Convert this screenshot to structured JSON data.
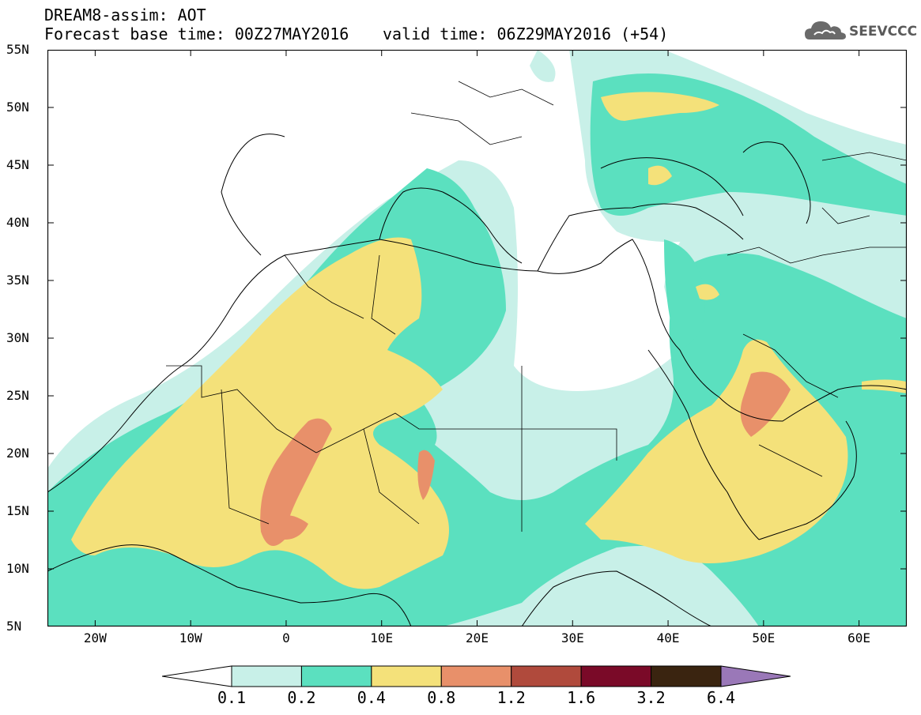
{
  "header": {
    "title_line1": "DREAM8-assim: AOT",
    "title_line2": "Forecast base time: 00Z27MAY2016",
    "valid_time": "valid time: 06Z29MAY2016 (+54)"
  },
  "logo": {
    "text": "SEEVCCC",
    "icon": "cloud-icon"
  },
  "map": {
    "lat_labels": [
      "55N",
      "50N",
      "45N",
      "40N",
      "35N",
      "30N",
      "25N",
      "20N",
      "15N",
      "10N",
      "5N"
    ],
    "lon_labels": [
      "20W",
      "10W",
      "0",
      "10E",
      "20E",
      "30E",
      "40E",
      "50E",
      "60E"
    ],
    "lat_range": [
      5,
      55
    ],
    "lon_range": [
      -25,
      65
    ],
    "colors": {
      "c01": "#c8f0e8",
      "c02": "#5be0bf",
      "c04": "#f4e17a",
      "c08": "#e8906a",
      "c12": "#b04a3c",
      "c16": "#7a0a28",
      "c32": "#3a2410",
      "c64": "#9a78b8"
    }
  },
  "colorbar": {
    "labels": [
      "0.1",
      "0.2",
      "0.4",
      "0.8",
      "1.2",
      "1.6",
      "3.2",
      "6.4"
    ],
    "colors": [
      "#c8f0e8",
      "#5be0bf",
      "#f4e17a",
      "#e8906a",
      "#b04a3c",
      "#7a0a28",
      "#3a2410"
    ],
    "extend_low_color": "#ffffff",
    "extend_high_color": "#9a78b8"
  }
}
